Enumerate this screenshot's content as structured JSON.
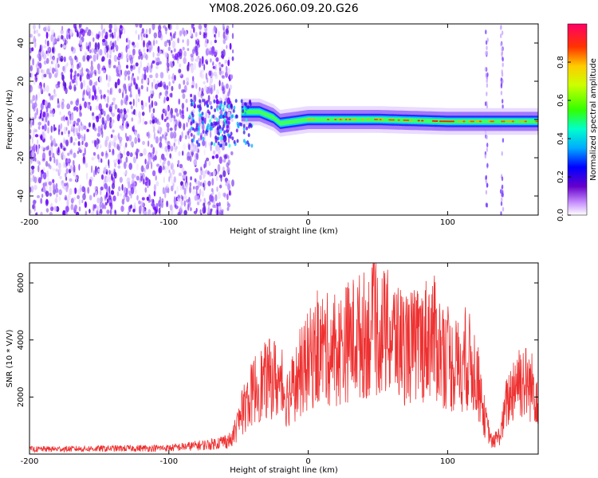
{
  "figure_title": "YM08.2026.060.09.20.G26",
  "colors": {
    "snr_line": "#ee3030",
    "axis": "#000000"
  },
  "chart_data": [
    {
      "type": "heatmap",
      "name": "spectrogram",
      "xlabel": "Height of straight line (km)",
      "ylabel": "Frequency (Hz)",
      "xlim": [
        -200,
        165
      ],
      "ylim": [
        -50,
        50
      ],
      "x_ticks": [
        -200,
        -100,
        0,
        100
      ],
      "y_ticks": [
        -40,
        -20,
        0,
        20,
        40
      ],
      "noise_region_end_km": -54,
      "signal_start_km": -48,
      "signal_trace": [
        {
          "x": -48,
          "f": 4
        },
        {
          "x": -35,
          "f": 4
        },
        {
          "x": -25,
          "f": 1
        },
        {
          "x": -20,
          "f": -2
        },
        {
          "x": 0,
          "f": 0
        },
        {
          "x": 50,
          "f": 0
        },
        {
          "x": 100,
          "f": -1
        },
        {
          "x": 165,
          "f": -1
        }
      ],
      "artifact_lines_km": [
        128,
        139
      ],
      "colorbar": {
        "label": "Normalized spectral amplitude",
        "range": [
          0.0,
          1.0
        ],
        "ticks": [
          0.0,
          0.2,
          0.4,
          0.6,
          0.8
        ]
      }
    },
    {
      "type": "line",
      "name": "snr",
      "xlabel": "Height of straight line (km)",
      "ylabel": "SNR (10 * V/V)",
      "xlim": [
        -200,
        165
      ],
      "ylim": [
        0,
        6700
      ],
      "x_ticks": [
        -200,
        -100,
        0,
        100
      ],
      "y_ticks": [
        2000,
        4000,
        6000
      ],
      "envelope": [
        {
          "x": -200,
          "y": 200
        },
        {
          "x": -100,
          "y": 250
        },
        {
          "x": -70,
          "y": 400
        },
        {
          "x": -55,
          "y": 600
        },
        {
          "x": -48,
          "y": 1800
        },
        {
          "x": -38,
          "y": 3000
        },
        {
          "x": -25,
          "y": 3500
        },
        {
          "x": -15,
          "y": 2600
        },
        {
          "x": 0,
          "y": 4200
        },
        {
          "x": 10,
          "y": 4800
        },
        {
          "x": 20,
          "y": 4600
        },
        {
          "x": 30,
          "y": 5200
        },
        {
          "x": 40,
          "y": 5400
        },
        {
          "x": 50,
          "y": 5600
        },
        {
          "x": 60,
          "y": 5300
        },
        {
          "x": 70,
          "y": 4800
        },
        {
          "x": 80,
          "y": 4900
        },
        {
          "x": 88,
          "y": 5500
        },
        {
          "x": 95,
          "y": 4700
        },
        {
          "x": 105,
          "y": 3900
        },
        {
          "x": 115,
          "y": 4200
        },
        {
          "x": 120,
          "y": 3800
        },
        {
          "x": 127,
          "y": 1500
        },
        {
          "x": 132,
          "y": 500
        },
        {
          "x": 138,
          "y": 900
        },
        {
          "x": 142,
          "y": 2200
        },
        {
          "x": 150,
          "y": 3500
        },
        {
          "x": 157,
          "y": 3200
        },
        {
          "x": 165,
          "y": 2800
        }
      ]
    }
  ]
}
